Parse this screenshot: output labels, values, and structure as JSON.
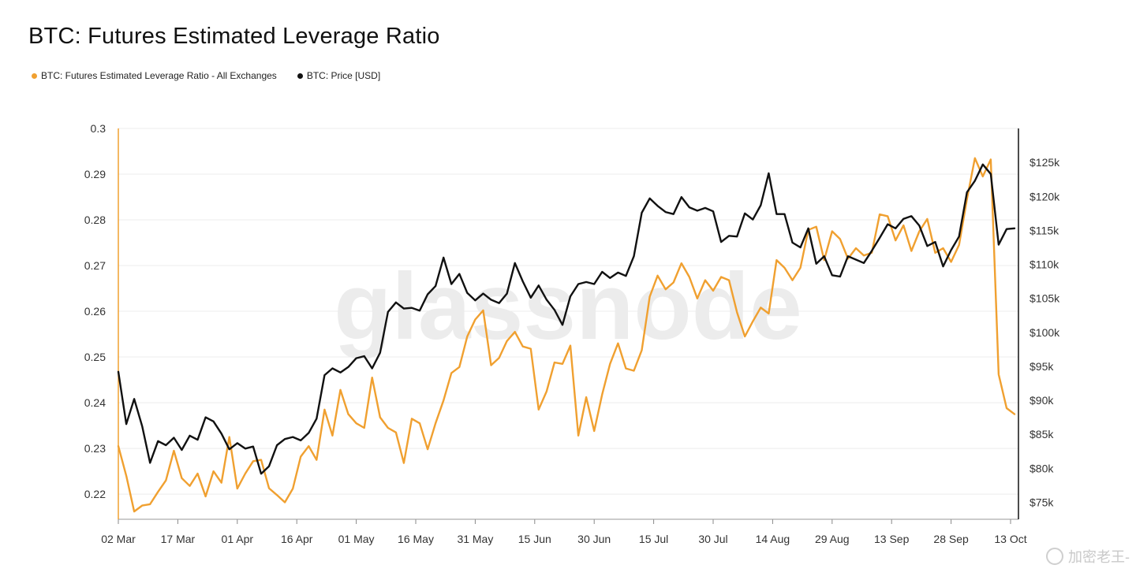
{
  "chart_data": {
    "type": "line",
    "title": "BTC: Futures Estimated Leverage Ratio",
    "watermark": "glassnode",
    "legend_placement": "top-left",
    "grid": true,
    "x_tick_labels": [
      "02 Mar",
      "17 Mar",
      "01 Apr",
      "16 Apr",
      "01 May",
      "16 May",
      "31 May",
      "15 Jun",
      "30 Jun",
      "15 Jul",
      "30 Jul",
      "14 Aug",
      "29 Aug",
      "13 Sep",
      "28 Sep",
      "13 Oct"
    ],
    "y_left": {
      "ylim": [
        0.2145,
        0.3
      ],
      "ticks": [
        0.3,
        0.29,
        0.28,
        0.27,
        0.26,
        0.25,
        0.24,
        0.23,
        0.22
      ],
      "tick_labels": [
        "0.3",
        "0.29",
        "0.28",
        "0.27",
        "0.26",
        "0.25",
        "0.24",
        "0.23",
        "0.22"
      ]
    },
    "y_right": {
      "ylim": [
        72500,
        130000
      ],
      "ticks": [
        125000,
        120000,
        115000,
        110000,
        105000,
        100000,
        95000,
        90000,
        85000,
        80000,
        75000
      ],
      "tick_labels": [
        "$125k",
        "$120k",
        "$115k",
        "$110k",
        "$105k",
        "$100k",
        "$95k",
        "$90k",
        "$85k",
        "$80k",
        "$75k"
      ]
    },
    "series": [
      {
        "name": "BTC: Futures Estimated Leverage Ratio - All Exchanges",
        "color": "#F0A030",
        "axis": "left",
        "points": [
          [
            "02 Mar",
            0.2305
          ],
          [
            "04 Mar",
            0.224
          ],
          [
            "06 Mar",
            0.2162
          ],
          [
            "08 Mar",
            0.2175
          ],
          [
            "10 Mar",
            0.2178
          ],
          [
            "12 Mar",
            0.2205
          ],
          [
            "14 Mar",
            0.223
          ],
          [
            "16 Mar",
            0.2295
          ],
          [
            "18 Mar",
            0.2235
          ],
          [
            "20 Mar",
            0.2218
          ],
          [
            "22 Mar",
            0.2245
          ],
          [
            "24 Mar",
            0.2195
          ],
          [
            "26 Mar",
            0.225
          ],
          [
            "28 Mar",
            0.2225
          ],
          [
            "30 Mar",
            0.2325
          ],
          [
            "01 Apr",
            0.2212
          ],
          [
            "03 Apr",
            0.2245
          ],
          [
            "05 Apr",
            0.2272
          ],
          [
            "07 Apr",
            0.2275
          ],
          [
            "09 Apr",
            0.2213
          ],
          [
            "11 Apr",
            0.2198
          ],
          [
            "13 Apr",
            0.2182
          ],
          [
            "15 Apr",
            0.2212
          ],
          [
            "17 Apr",
            0.2282
          ],
          [
            "19 Apr",
            0.2305
          ],
          [
            "21 Apr",
            0.2275
          ],
          [
            "23 Apr",
            0.2385
          ],
          [
            "25 Apr",
            0.2328
          ],
          [
            "27 Apr",
            0.2428
          ],
          [
            "29 Apr",
            0.2375
          ],
          [
            "01 May",
            0.2355
          ],
          [
            "03 May",
            0.2345
          ],
          [
            "05 May",
            0.2455
          ],
          [
            "07 May",
            0.2368
          ],
          [
            "09 May",
            0.2345
          ],
          [
            "11 May",
            0.2335
          ],
          [
            "13 May",
            0.2268
          ],
          [
            "15 May",
            0.2365
          ],
          [
            "17 May",
            0.2355
          ],
          [
            "19 May",
            0.2298
          ],
          [
            "21 May",
            0.2355
          ],
          [
            "23 May",
            0.2405
          ],
          [
            "25 May",
            0.2465
          ],
          [
            "27 May",
            0.2478
          ],
          [
            "29 May",
            0.2545
          ],
          [
            "31 May",
            0.2582
          ],
          [
            "02 Jun",
            0.2602
          ],
          [
            "04 Jun",
            0.2482
          ],
          [
            "06 Jun",
            0.2498
          ],
          [
            "08 Jun",
            0.2535
          ],
          [
            "10 Jun",
            0.2555
          ],
          [
            "12 Jun",
            0.2523
          ],
          [
            "14 Jun",
            0.2518
          ],
          [
            "16 Jun",
            0.2385
          ],
          [
            "18 Jun",
            0.2425
          ],
          [
            "20 Jun",
            0.2488
          ],
          [
            "22 Jun",
            0.2485
          ],
          [
            "24 Jun",
            0.2525
          ],
          [
            "26 Jun",
            0.2328
          ],
          [
            "28 Jun",
            0.2412
          ],
          [
            "30 Jun",
            0.2338
          ],
          [
            "02 Jul",
            0.2418
          ],
          [
            "04 Jul",
            0.2485
          ],
          [
            "06 Jul",
            0.253
          ],
          [
            "08 Jul",
            0.2475
          ],
          [
            "10 Jul",
            0.247
          ],
          [
            "12 Jul",
            0.2515
          ],
          [
            "14 Jul",
            0.2632
          ],
          [
            "16 Jul",
            0.2678
          ],
          [
            "18 Jul",
            0.2648
          ],
          [
            "20 Jul",
            0.2663
          ],
          [
            "22 Jul",
            0.2705
          ],
          [
            "24 Jul",
            0.2675
          ],
          [
            "26 Jul",
            0.2628
          ],
          [
            "28 Jul",
            0.2668
          ],
          [
            "30 Jul",
            0.2645
          ],
          [
            "01 Aug",
            0.2675
          ],
          [
            "03 Aug",
            0.2668
          ],
          [
            "05 Aug",
            0.2598
          ],
          [
            "07 Aug",
            0.2545
          ],
          [
            "09 Aug",
            0.2578
          ],
          [
            "11 Aug",
            0.2608
          ],
          [
            "13 Aug",
            0.2595
          ],
          [
            "15 Aug",
            0.2712
          ],
          [
            "17 Aug",
            0.2695
          ],
          [
            "19 Aug",
            0.2668
          ],
          [
            "21 Aug",
            0.2695
          ],
          [
            "23 Aug",
            0.2778
          ],
          [
            "25 Aug",
            0.2785
          ],
          [
            "27 Aug",
            0.2712
          ],
          [
            "29 Aug",
            0.2775
          ],
          [
            "31 Aug",
            0.2758
          ],
          [
            "02 Sep",
            0.2715
          ],
          [
            "04 Sep",
            0.2738
          ],
          [
            "06 Sep",
            0.2722
          ],
          [
            "08 Sep",
            0.2728
          ],
          [
            "10 Sep",
            0.2812
          ],
          [
            "12 Sep",
            0.2808
          ],
          [
            "14 Sep",
            0.2755
          ],
          [
            "16 Sep",
            0.2788
          ],
          [
            "18 Sep",
            0.2732
          ],
          [
            "20 Sep",
            0.2775
          ],
          [
            "22 Sep",
            0.2802
          ],
          [
            "24 Sep",
            0.2728
          ],
          [
            "26 Sep",
            0.2738
          ],
          [
            "28 Sep",
            0.2708
          ],
          [
            "30 Sep",
            0.2745
          ],
          [
            "02 Oct",
            0.2845
          ],
          [
            "04 Oct",
            0.2935
          ],
          [
            "06 Oct",
            0.2895
          ],
          [
            "08 Oct",
            0.2932
          ],
          [
            "10 Oct",
            0.2462
          ],
          [
            "12 Oct",
            0.2388
          ],
          [
            "14 Oct",
            0.2375
          ]
        ]
      },
      {
        "name": "BTC: Price [USD]",
        "color": "#111111",
        "axis": "right",
        "points": [
          [
            "02 Mar",
            94200
          ],
          [
            "04 Mar",
            86500
          ],
          [
            "06 Mar",
            90200
          ],
          [
            "08 Mar",
            86200
          ],
          [
            "10 Mar",
            80800
          ],
          [
            "12 Mar",
            84000
          ],
          [
            "14 Mar",
            83400
          ],
          [
            "16 Mar",
            84500
          ],
          [
            "18 Mar",
            82700
          ],
          [
            "20 Mar",
            84800
          ],
          [
            "22 Mar",
            84200
          ],
          [
            "24 Mar",
            87500
          ],
          [
            "26 Mar",
            86900
          ],
          [
            "28 Mar",
            85100
          ],
          [
            "30 Mar",
            82800
          ],
          [
            "01 Apr",
            83700
          ],
          [
            "03 Apr",
            82900
          ],
          [
            "05 Apr",
            83200
          ],
          [
            "07 Apr",
            79200
          ],
          [
            "09 Apr",
            80300
          ],
          [
            "11 Apr",
            83400
          ],
          [
            "13 Apr",
            84300
          ],
          [
            "15 Apr",
            84600
          ],
          [
            "17 Apr",
            84100
          ],
          [
            "19 Apr",
            85200
          ],
          [
            "21 Apr",
            87300
          ],
          [
            "23 Apr",
            93700
          ],
          [
            "25 Apr",
            94700
          ],
          [
            "27 Apr",
            94100
          ],
          [
            "29 Apr",
            94900
          ],
          [
            "01 May",
            96200
          ],
          [
            "03 May",
            96500
          ],
          [
            "05 May",
            94700
          ],
          [
            "07 May",
            97000
          ],
          [
            "09 May",
            103000
          ],
          [
            "11 May",
            104400
          ],
          [
            "13 May",
            103500
          ],
          [
            "15 May",
            103600
          ],
          [
            "17 May",
            103200
          ],
          [
            "19 May",
            105600
          ],
          [
            "21 May",
            106800
          ],
          [
            "23 May",
            111000
          ],
          [
            "25 May",
            107100
          ],
          [
            "27 May",
            108600
          ],
          [
            "29 May",
            105800
          ],
          [
            "31 May",
            104700
          ],
          [
            "02 Jun",
            105700
          ],
          [
            "04 Jun",
            104800
          ],
          [
            "06 Jun",
            104300
          ],
          [
            "08 Jun",
            105700
          ],
          [
            "10 Jun",
            110200
          ],
          [
            "12 Jun",
            107500
          ],
          [
            "14 Jun",
            105100
          ],
          [
            "16 Jun",
            106900
          ],
          [
            "18 Jun",
            104800
          ],
          [
            "20 Jun",
            103300
          ],
          [
            "22 Jun",
            101100
          ],
          [
            "24 Jun",
            105300
          ],
          [
            "26 Jun",
            107100
          ],
          [
            "28 Jun",
            107400
          ],
          [
            "30 Jun",
            107100
          ],
          [
            "02 Jul",
            108900
          ],
          [
            "04 Jul",
            108000
          ],
          [
            "06 Jul",
            108800
          ],
          [
            "08 Jul",
            108300
          ],
          [
            "10 Jul",
            111200
          ],
          [
            "12 Jul",
            117600
          ],
          [
            "14 Jul",
            119700
          ],
          [
            "16 Jul",
            118600
          ],
          [
            "18 Jul",
            117700
          ],
          [
            "20 Jul",
            117400
          ],
          [
            "22 Jul",
            119900
          ],
          [
            "24 Jul",
            118400
          ],
          [
            "26 Jul",
            117900
          ],
          [
            "28 Jul",
            118300
          ],
          [
            "30 Jul",
            117800
          ],
          [
            "01 Aug",
            113300
          ],
          [
            "03 Aug",
            114200
          ],
          [
            "05 Aug",
            114100
          ],
          [
            "07 Aug",
            117500
          ],
          [
            "09 Aug",
            116600
          ],
          [
            "11 Aug",
            118700
          ],
          [
            "13 Aug",
            123400
          ],
          [
            "15 Aug",
            117400
          ],
          [
            "17 Aug",
            117400
          ],
          [
            "19 Aug",
            113200
          ],
          [
            "21 Aug",
            112500
          ],
          [
            "23 Aug",
            115300
          ],
          [
            "25 Aug",
            110100
          ],
          [
            "27 Aug",
            111200
          ],
          [
            "29 Aug",
            108400
          ],
          [
            "31 Aug",
            108200
          ],
          [
            "02 Sep",
            111200
          ],
          [
            "04 Sep",
            110700
          ],
          [
            "06 Sep",
            110200
          ],
          [
            "08 Sep",
            112000
          ],
          [
            "10 Sep",
            113900
          ],
          [
            "12 Sep",
            115900
          ],
          [
            "14 Sep",
            115300
          ],
          [
            "16 Sep",
            116700
          ],
          [
            "18 Sep",
            117100
          ],
          [
            "20 Sep",
            115700
          ],
          [
            "22 Sep",
            112700
          ],
          [
            "24 Sep",
            113300
          ],
          [
            "26 Sep",
            109700
          ],
          [
            "28 Sep",
            112100
          ],
          [
            "30 Sep",
            114100
          ],
          [
            "02 Oct",
            120600
          ],
          [
            "04 Oct",
            122300
          ],
          [
            "06 Oct",
            124700
          ],
          [
            "08 Oct",
            123300
          ],
          [
            "10 Oct",
            112900
          ],
          [
            "12 Oct",
            115200
          ],
          [
            "14 Oct",
            115300
          ]
        ]
      }
    ]
  },
  "footer": {
    "watermark_text": "加密老王-"
  }
}
